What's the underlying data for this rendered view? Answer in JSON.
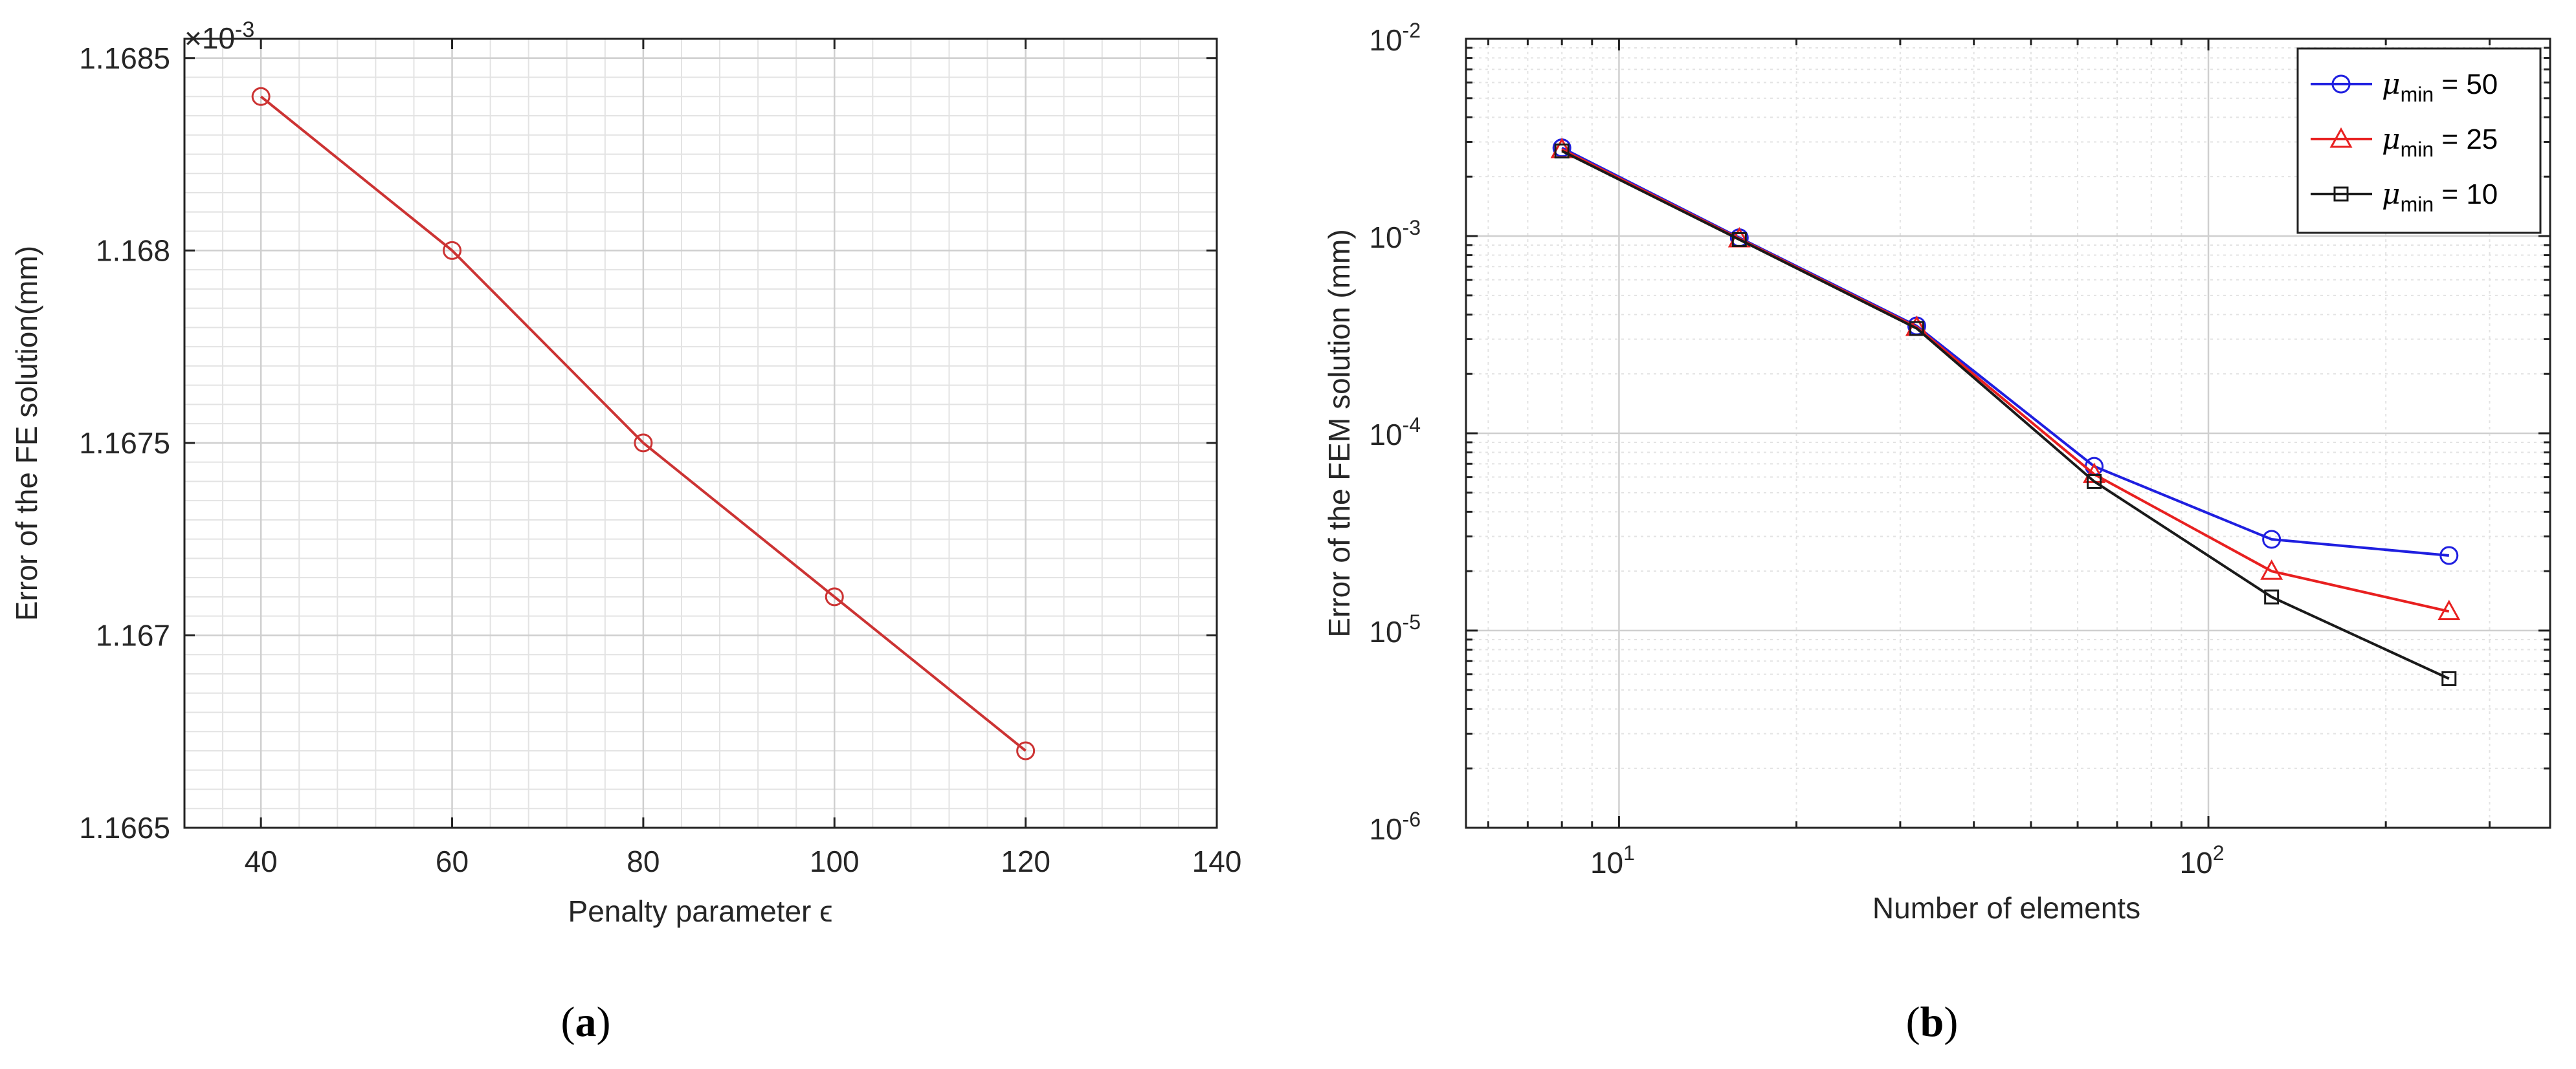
{
  "figure": {
    "panels": [
      {
        "label_open": "(",
        "label_letter": "a",
        "label_close": ")"
      },
      {
        "label_open": "(",
        "label_letter": "b",
        "label_close": ")"
      }
    ]
  },
  "chart_data": [
    {
      "type": "line",
      "title": "",
      "xlabel": "Penalty parameter ϵ",
      "ylabel": "Error of the FE solution(mm)",
      "y_exponent_label": "×10",
      "y_exponent_power": "-3",
      "xlim": [
        32,
        140
      ],
      "ylim": [
        1.1665,
        1.16855
      ],
      "x_ticks": [
        "40",
        "60",
        "80",
        "100",
        "120",
        "140"
      ],
      "y_ticks": [
        "1.1665",
        "1.167",
        "1.1675",
        "1.168",
        "1.1685"
      ],
      "grid": true,
      "minor_grid": true,
      "series": [
        {
          "color": "#cc3333",
          "marker": "circle",
          "x": [
            40,
            60,
            80,
            100,
            120
          ],
          "y": [
            1.1684,
            1.168,
            1.1675,
            1.1671,
            1.1667
          ]
        }
      ]
    },
    {
      "type": "line",
      "title": "",
      "xlabel": "Number of elements",
      "ylabel": "Error of the FEM solution (mm)",
      "x_scale": "log",
      "y_scale": "log",
      "xlim": [
        5.5,
        380
      ],
      "ylim": [
        1e-06,
        0.01
      ],
      "x_ticks": [
        {
          "base": "10",
          "exp": "1"
        },
        {
          "base": "10",
          "exp": "2"
        }
      ],
      "y_ticks": [
        {
          "base": "10",
          "exp": "-6"
        },
        {
          "base": "10",
          "exp": "-5"
        },
        {
          "base": "10",
          "exp": "-4"
        },
        {
          "base": "10",
          "exp": "-3"
        },
        {
          "base": "10",
          "exp": "-2"
        }
      ],
      "grid": true,
      "minor_grid": true,
      "legend_position": "top-right",
      "series": [
        {
          "name_symbol": "μ",
          "name_sub": "min",
          "name_value": "= 50",
          "color": "#1f1fe0",
          "marker": "circle",
          "x": [
            8,
            16,
            32,
            64,
            128,
            256
          ],
          "y": [
            0.0028,
            0.00098,
            0.00035,
            6.8e-05,
            2.9e-05,
            2.4e-05
          ]
        },
        {
          "name_symbol": "μ",
          "name_sub": "min",
          "name_value": "= 25",
          "color": "#e82020",
          "marker": "triangle",
          "x": [
            8,
            16,
            32,
            64,
            128,
            256
          ],
          "y": [
            0.00275,
            0.00097,
            0.000345,
            6.2e-05,
            2e-05,
            1.25e-05
          ]
        },
        {
          "name_symbol": "μ",
          "name_sub": "min",
          "name_value": "= 10",
          "color": "#1a1a1a",
          "marker": "square",
          "x": [
            8,
            16,
            32,
            64,
            128,
            256
          ],
          "y": [
            0.0027,
            0.00096,
            0.00034,
            5.7e-05,
            1.48e-05,
            5.7e-06
          ]
        }
      ]
    }
  ]
}
